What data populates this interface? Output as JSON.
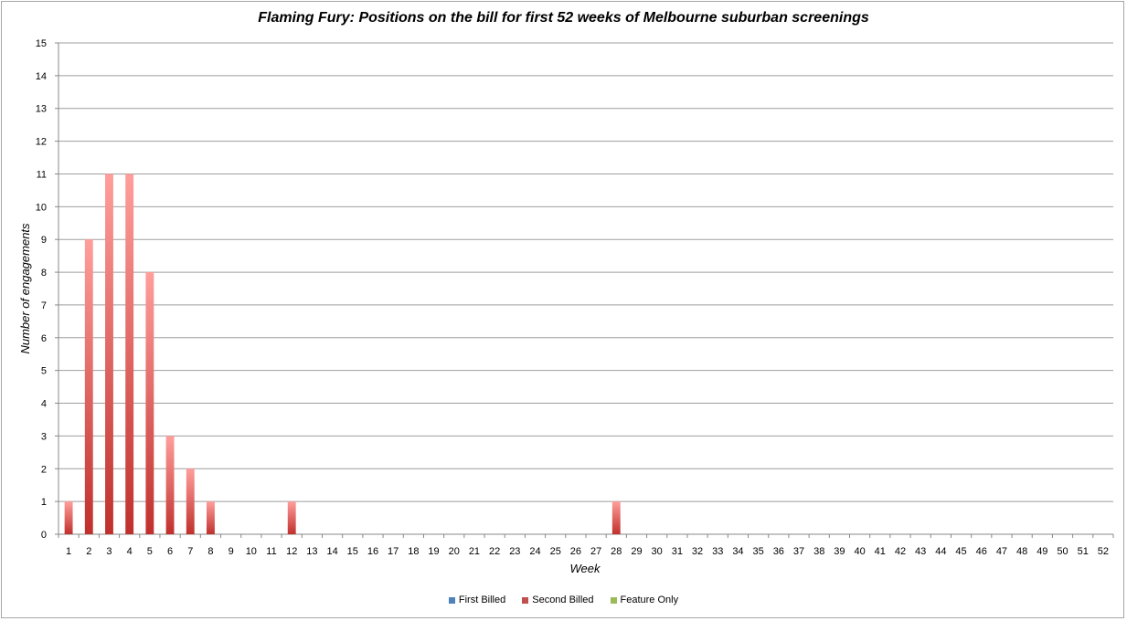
{
  "chart_data": {
    "type": "bar",
    "stacked": true,
    "title": "Flaming Fury: Positions on the bill for first 52 weeks of Melbourne suburban screenings",
    "xlabel": "Week",
    "ylabel": "Number of engagements",
    "ylim": [
      0,
      15
    ],
    "yticks": [
      0,
      1,
      2,
      3,
      4,
      5,
      6,
      7,
      8,
      9,
      10,
      11,
      12,
      13,
      14,
      15
    ],
    "grid": true,
    "legend_position": "bottom",
    "categories": [
      "1",
      "2",
      "3",
      "4",
      "5",
      "6",
      "7",
      "8",
      "9",
      "10",
      "11",
      "12",
      "13",
      "14",
      "15",
      "16",
      "17",
      "18",
      "19",
      "20",
      "21",
      "22",
      "23",
      "24",
      "25",
      "26",
      "27",
      "28",
      "29",
      "30",
      "31",
      "32",
      "33",
      "34",
      "35",
      "36",
      "37",
      "38",
      "39",
      "40",
      "41",
      "42",
      "43",
      "44",
      "45",
      "46",
      "47",
      "48",
      "49",
      "50",
      "51",
      "52"
    ],
    "series": [
      {
        "name": "First Billed",
        "color": "#4f81bd",
        "values": [
          0,
          0,
          0,
          0,
          0,
          0,
          0,
          0,
          0,
          0,
          0,
          0,
          0,
          0,
          0,
          0,
          0,
          0,
          0,
          0,
          0,
          0,
          0,
          0,
          0,
          0,
          0,
          0,
          0,
          0,
          0,
          0,
          0,
          0,
          0,
          0,
          0,
          0,
          0,
          0,
          0,
          0,
          0,
          0,
          0,
          0,
          0,
          0,
          0,
          0,
          0,
          0
        ]
      },
      {
        "name": "Second Billed",
        "color": "#c0504d",
        "values": [
          1,
          9,
          11,
          11,
          8,
          3,
          2,
          1,
          0,
          0,
          0,
          1,
          0,
          0,
          0,
          0,
          0,
          0,
          0,
          0,
          0,
          0,
          0,
          0,
          0,
          0,
          0,
          1,
          0,
          0,
          0,
          0,
          0,
          0,
          0,
          0,
          0,
          0,
          0,
          0,
          0,
          0,
          0,
          0,
          0,
          0,
          0,
          0,
          0,
          0,
          0,
          0
        ]
      },
      {
        "name": "Feature Only",
        "color": "#9bbb59",
        "values": [
          0,
          0,
          0,
          0,
          0,
          0,
          0,
          0,
          0,
          0,
          0,
          0,
          0,
          0,
          0,
          0,
          0,
          0,
          0,
          0,
          0,
          0,
          0,
          0,
          0,
          0,
          0,
          0,
          0,
          0,
          0,
          0,
          0,
          0,
          0,
          0,
          0,
          0,
          0,
          0,
          0,
          0,
          0,
          0,
          0,
          0,
          0,
          0,
          0,
          0,
          0,
          0
        ]
      }
    ]
  }
}
